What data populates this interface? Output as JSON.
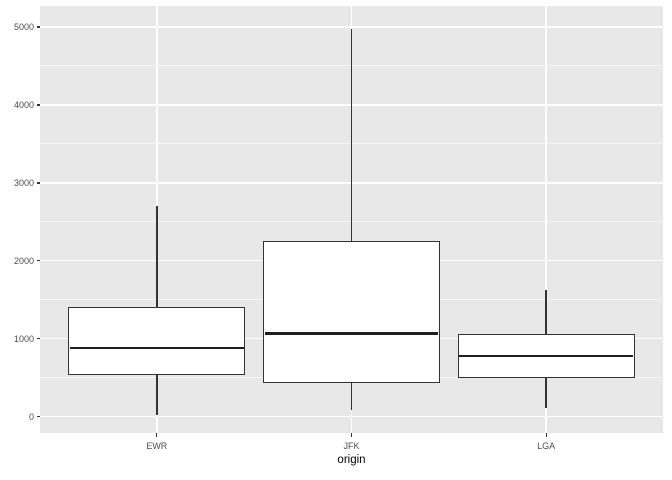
{
  "chart_data": {
    "type": "boxplot",
    "title": "",
    "xlabel": "origin",
    "ylabel": "",
    "categories": [
      "EWR",
      "JFK",
      "LGA"
    ],
    "series": [
      {
        "category": "EWR",
        "whisker_low": 17,
        "q1": 550,
        "median": 880,
        "q3": 1400,
        "whisker_high": 2700,
        "outliers": []
      },
      {
        "category": "JFK",
        "whisker_low": 90,
        "q1": 440,
        "median": 1070,
        "q3": 2250,
        "whisker_high": 4980,
        "outliers": []
      },
      {
        "category": "LGA",
        "whisker_low": 110,
        "q1": 510,
        "median": 780,
        "q3": 1050,
        "whisker_high": 1620,
        "outliers": []
      }
    ],
    "y_axis": {
      "ticks": [
        0,
        1000,
        2000,
        3000,
        4000,
        5000
      ],
      "tick_labels": [
        "0",
        "1000",
        "2000",
        "3000",
        "4000",
        "5000"
      ],
      "minor_ticks": [
        500,
        1500,
        2500,
        3500,
        4500
      ],
      "range": [
        -210,
        5270
      ]
    },
    "grid": "major+minor, white on gray panel, vertical majors at category centers",
    "legend": null,
    "style": {
      "panel_bg": "#e8e8e8",
      "gridline": "#ffffff",
      "box_border": "#333333",
      "box_fill": "#ffffff",
      "median": "#1f1f1f",
      "axis_text": "#4d4d4d",
      "axis_title": "#000000",
      "tick_mark": "#333333"
    }
  }
}
